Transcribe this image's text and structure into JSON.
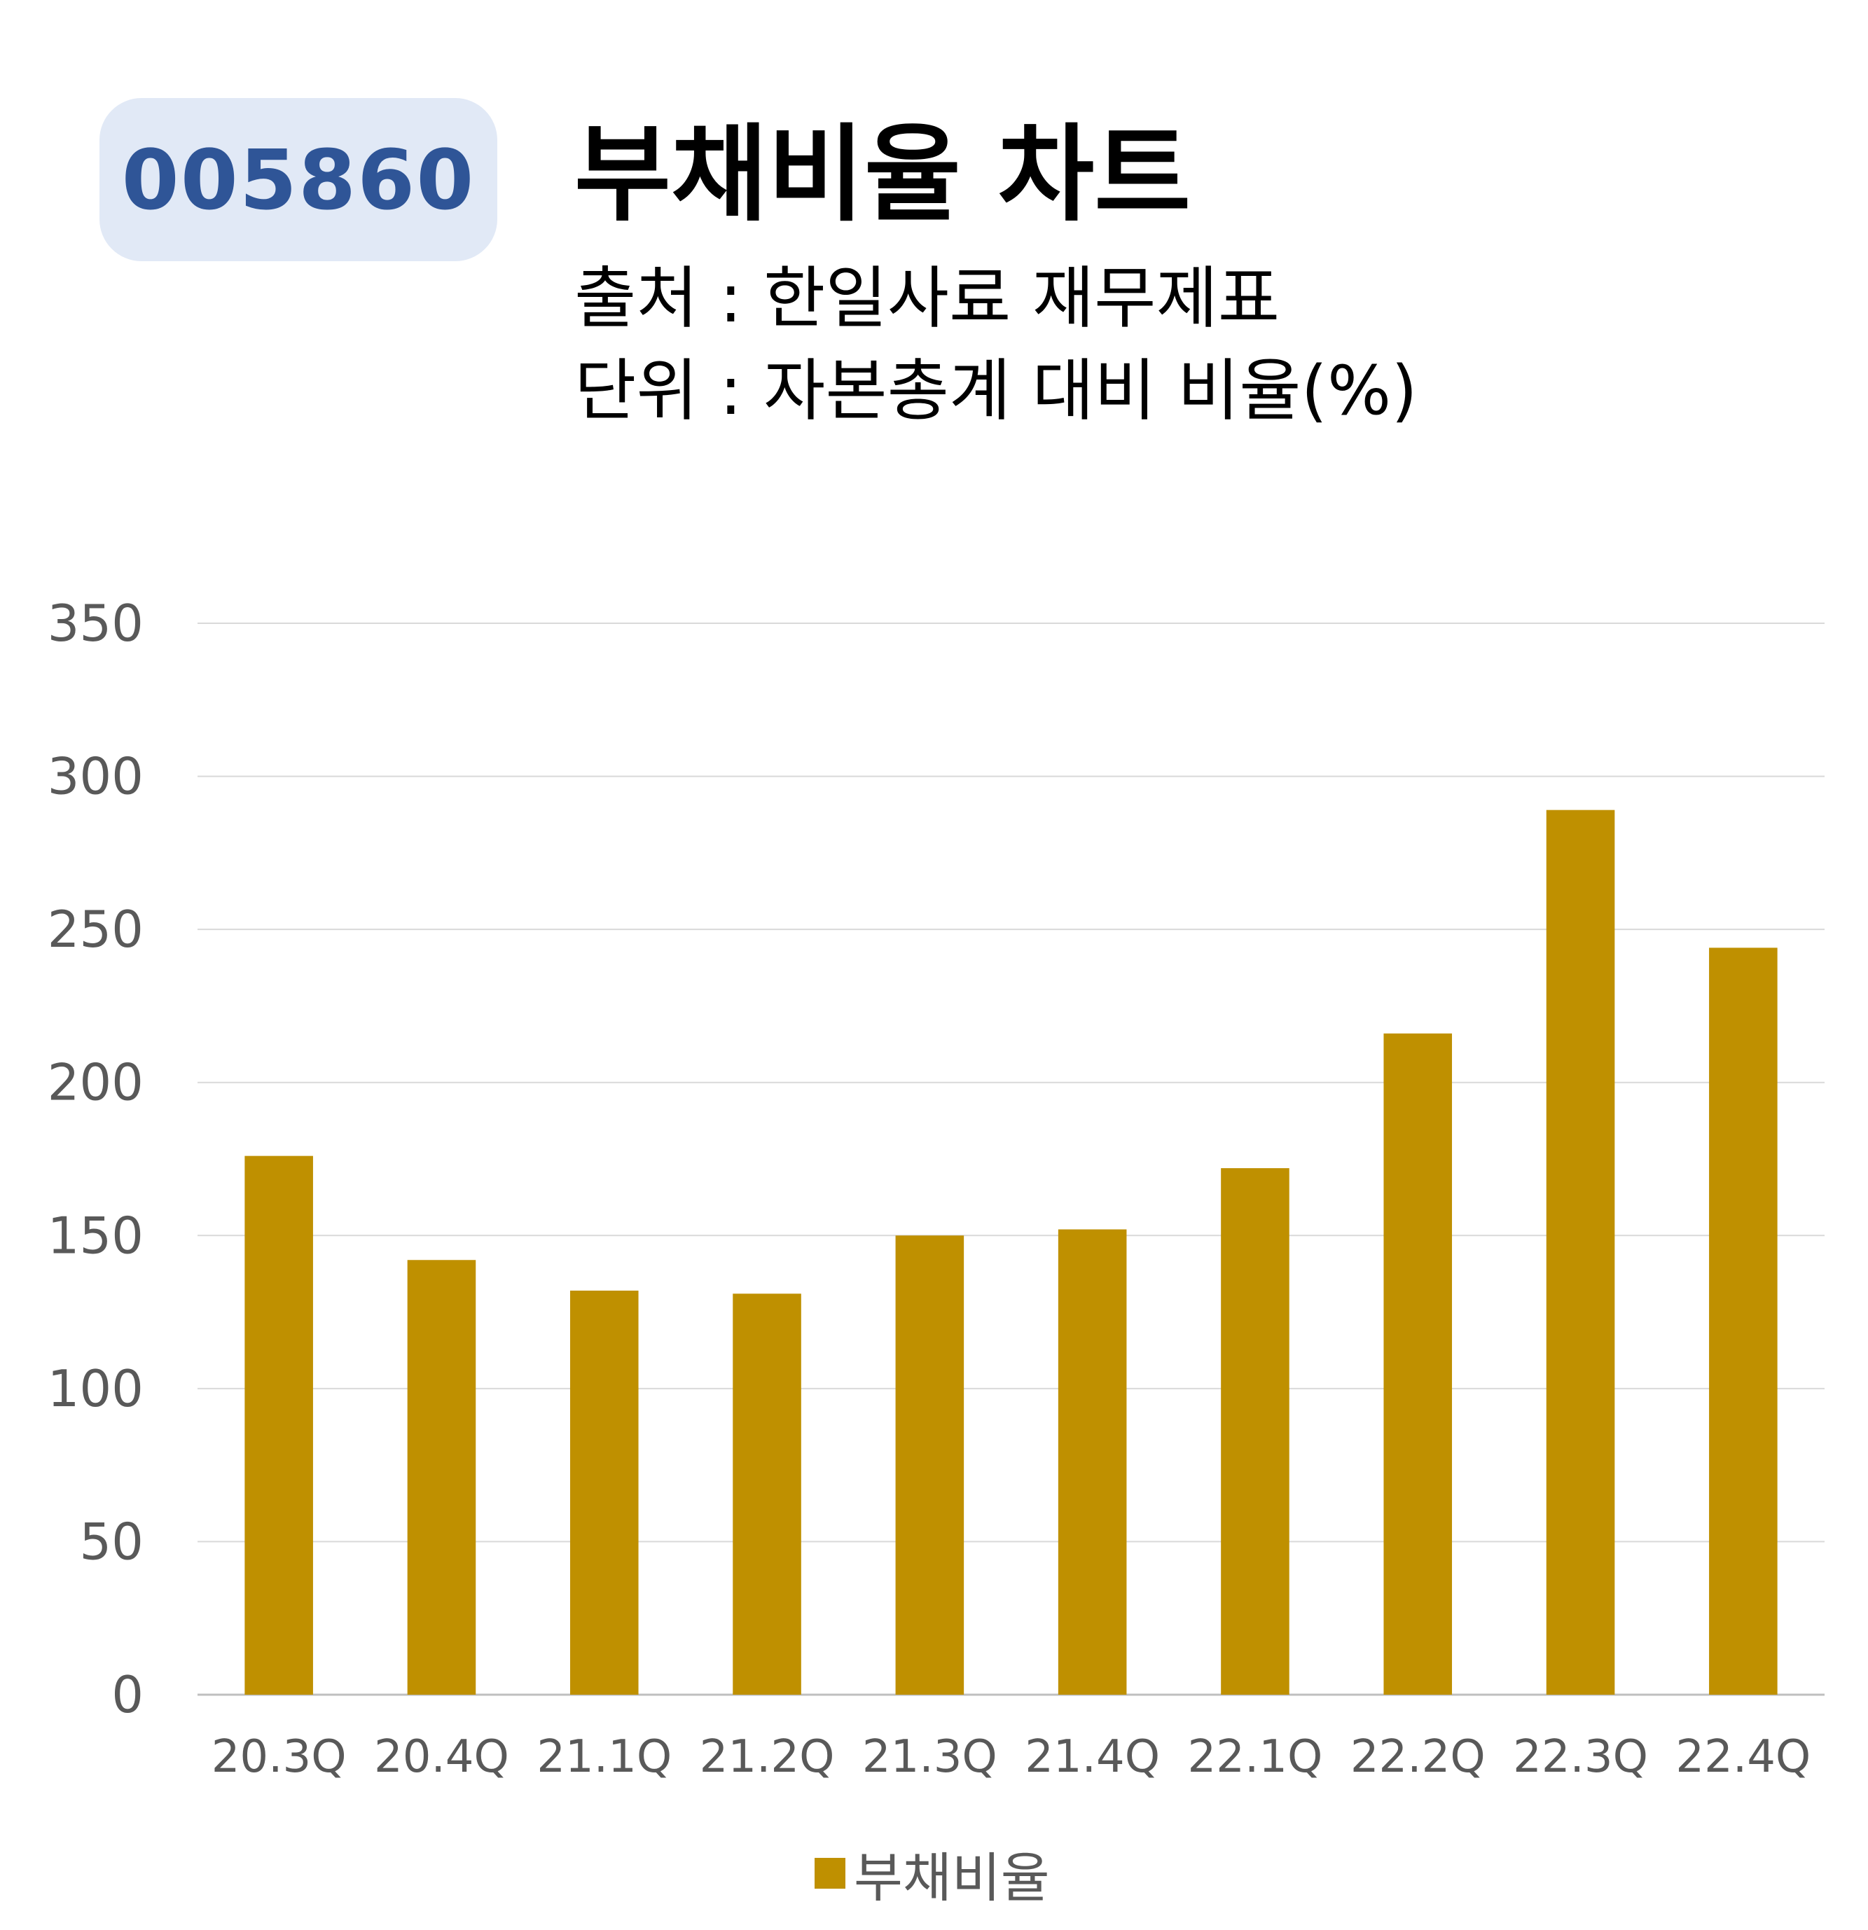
{
  "badge": {
    "code": "005860"
  },
  "header": {
    "title": "부채비율 차트",
    "source": "출처 : 한일사료 재무제표",
    "unit": "단위 : 자본총계 대비 비율(%)"
  },
  "colors": {
    "bar": "#bf9000",
    "badge_bg": "#e1e9f6",
    "badge_text": "#2f5597",
    "grid": "#d9d9d9",
    "tick": "#595959"
  },
  "chart_data": {
    "type": "bar",
    "title": "",
    "xlabel": "",
    "ylabel": "",
    "ylim": [
      0,
      350
    ],
    "yticks": [
      0,
      50,
      100,
      150,
      200,
      250,
      300,
      350
    ],
    "grid": true,
    "legend_position": "bottom",
    "categories": [
      "20.3Q",
      "20.4Q",
      "21.1Q",
      "21.2Q",
      "21.3Q",
      "21.4Q",
      "22.1Q",
      "22.2Q",
      "22.3Q",
      "22.4Q"
    ],
    "series": [
      {
        "name": "부채비율",
        "values": [
          176,
          142,
          132,
          131,
          150,
          152,
          172,
          216,
          289,
          244
        ]
      }
    ]
  }
}
